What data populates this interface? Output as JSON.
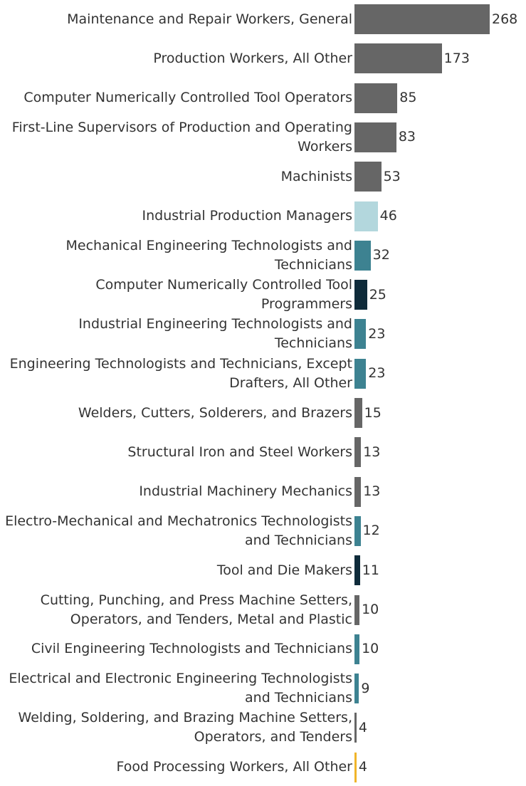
{
  "chart_data": {
    "type": "bar",
    "orientation": "horizontal",
    "grid": false,
    "legend": "none",
    "categories": [
      "Maintenance and Repair Workers, General",
      "Production Workers, All Other",
      "Computer Numerically Controlled Tool Operators",
      "First-Line Supervisors of Production and Operating Workers",
      "Machinists",
      "Industrial Production Managers",
      "Mechanical Engineering Technologists and Technicians",
      "Computer Numerically Controlled Tool Programmers",
      "Industrial Engineering Technologists and Technicians",
      "Engineering Technologists and Technicians, Except Drafters, All Other",
      "Welders, Cutters, Solderers, and Brazers",
      "Structural Iron and Steel Workers",
      "Industrial Machinery Mechanics",
      "Electro-Mechanical and Mechatronics Technologists and Technicians",
      "Tool and Die Makers",
      "Cutting, Punching, and Press Machine Setters, Operators, and Tenders, Metal and Plastic",
      "Civil Engineering Technologists and Technicians",
      "Electrical and Electronic Engineering Technologists and Technicians",
      "Welding, Soldering, and Brazing Machine Setters, Operators, and Tenders",
      "Food Processing Workers, All Other"
    ],
    "values": [
      268,
      173,
      85,
      83,
      53,
      46,
      32,
      25,
      23,
      23,
      15,
      13,
      13,
      12,
      11,
      10,
      10,
      9,
      4,
      4
    ],
    "colors": [
      "#666666",
      "#666666",
      "#666666",
      "#666666",
      "#666666",
      "#b3d7dd",
      "#3d8291",
      "#0f2b3a",
      "#3d8291",
      "#3d8291",
      "#666666",
      "#666666",
      "#666666",
      "#3d8291",
      "#0f2b3a",
      "#666666",
      "#3d8291",
      "#3d8291",
      "#666666",
      "#f0b429"
    ],
    "xlim": [
      0,
      268
    ]
  }
}
